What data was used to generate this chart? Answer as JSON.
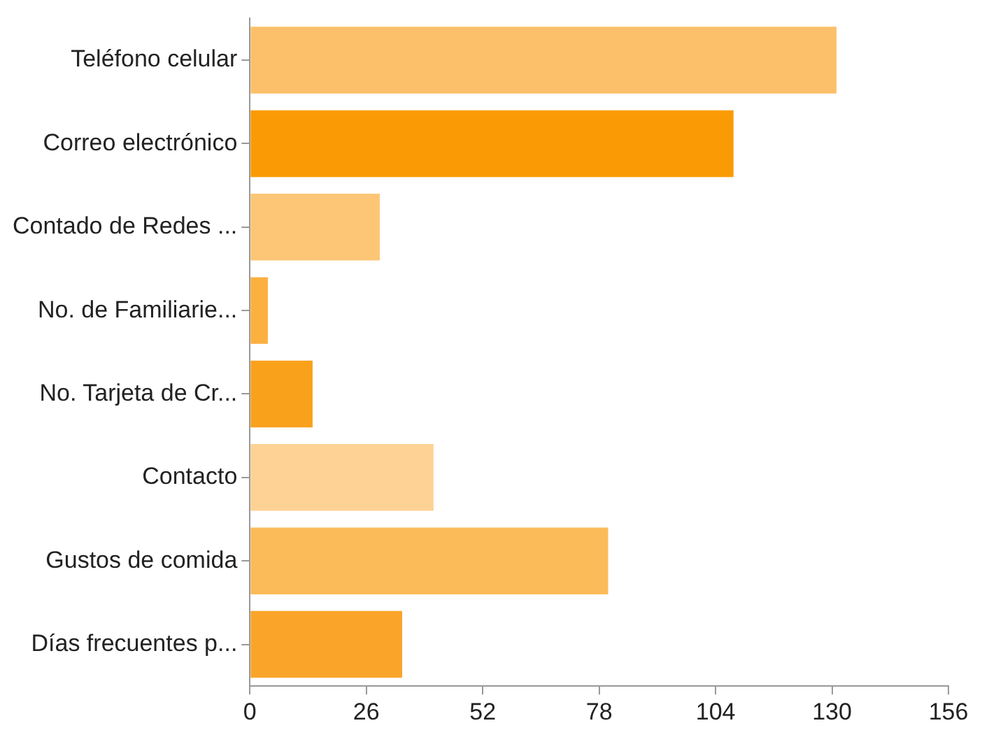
{
  "chart_data": {
    "type": "bar",
    "orientation": "horizontal",
    "categories": [
      "Teléfono celular",
      "Correo electrónico",
      "Contado de Redes ...",
      "No. de Familiarie...",
      "No. Tarjeta de Cr...",
      "Contacto",
      "Gustos de comida",
      "Días frecuentes p..."
    ],
    "values": [
      131,
      108,
      29,
      4,
      14,
      41,
      80,
      34
    ],
    "colors": [
      "#fdc06a",
      "#fa9b05",
      "#fdc676",
      "#fcb040",
      "#faa11c",
      "#fdd294",
      "#fcbb59",
      "#faa52a"
    ],
    "xlim": [
      0,
      156
    ],
    "xticks": [
      0,
      26,
      52,
      78,
      104,
      130,
      156
    ],
    "grid": false,
    "legend": false
  }
}
